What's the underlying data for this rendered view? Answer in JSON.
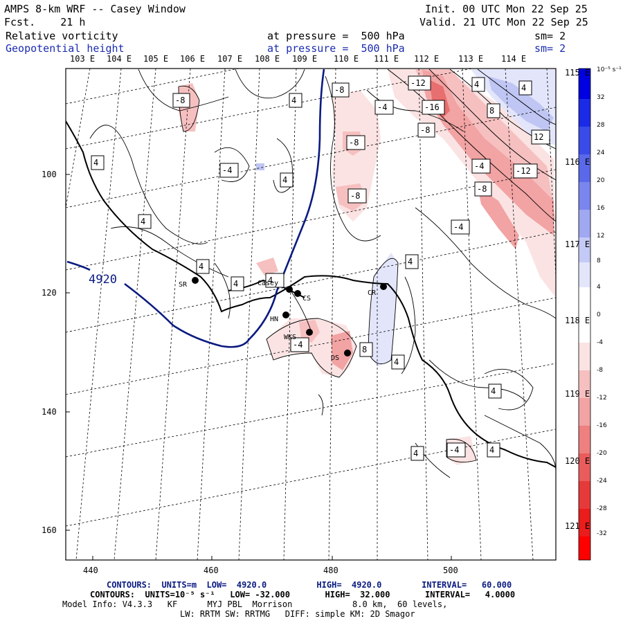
{
  "header": {
    "title": "AMPS 8-km WRF -- Casey Window",
    "forecast": "Fcst.    21 h",
    "init": "Init. 00 UTC Mon 22 Sep 25",
    "valid": "Valid. 21 UTC Mon 22 Sep 25",
    "field1": {
      "name": "Relative vorticity",
      "pressure": "at pressure =  500 hPa",
      "smoothing": "sm= 2"
    },
    "field2": {
      "name": "Geopotential height",
      "pressure": "at pressure =  500 hPa",
      "smoothing": "sm= 2"
    }
  },
  "longitude_labels": [
    "103 E",
    "104 E",
    "105 E",
    "106 E",
    "107 E",
    "108 E",
    "109 E",
    "110 E",
    "111 E",
    "112 E",
    "113 E",
    "114 E"
  ],
  "right_labels": [
    "115 E",
    "116 E",
    "117 E",
    "118 E",
    "119 E",
    "120 E",
    "121 E"
  ],
  "x_axis_ticks": [
    "440",
    "460",
    "480",
    "500"
  ],
  "y_axis_ticks": [
    "100",
    "120",
    "140",
    "160"
  ],
  "colorbar": {
    "unit": "10⁻⁵ s⁻¹",
    "ticks": [
      "32",
      "28",
      "24",
      "20",
      "16",
      "12",
      "8",
      "4",
      "0",
      "-4",
      "-8",
      "-12",
      "-16",
      "-20",
      "-24",
      "-28",
      "-32"
    ]
  },
  "stations": [
    {
      "code": "SR"
    },
    {
      "code": "Casey"
    },
    {
      "code": "CS"
    },
    {
      "code": "CR"
    },
    {
      "code": "HN"
    },
    {
      "code": "WKS"
    },
    {
      "code": "DS"
    }
  ],
  "contour_labels": [
    "-8",
    "4",
    "-8",
    "-12",
    "-16",
    "-8",
    "4",
    "4",
    "-4",
    "-8",
    "4",
    "8",
    "12",
    "-4",
    "-12",
    "-8",
    "-4",
    "4",
    "4",
    "-8",
    "-4",
    "4",
    "-4",
    "8",
    "4",
    "4",
    "4",
    "-4",
    "4",
    "4",
    "4",
    "4"
  ],
  "height_label": "4920",
  "footer": {
    "line1": "CONTOURS:  UNITS=m  LOW=  4920.0          HIGH=  4920.0        INTERVAL=   60.000",
    "line2": "CONTOURS:  UNITS=10⁻⁵ s⁻¹   LOW= -32.000       HIGH=  32.000       INTERVAL=   4.0000",
    "line3": "Model Info: V4.3.3   KF      MYJ PBL  Morrison            8.0 km,  60 levels,",
    "line4": "LW: RRTM SW: RRTMG   DIFF: simple KM: 2D Smagor"
  },
  "colors": {
    "positive_vorticity": "#e05050",
    "negative_vorticity": "#4050d0",
    "height_contour": "#0a1a80"
  }
}
